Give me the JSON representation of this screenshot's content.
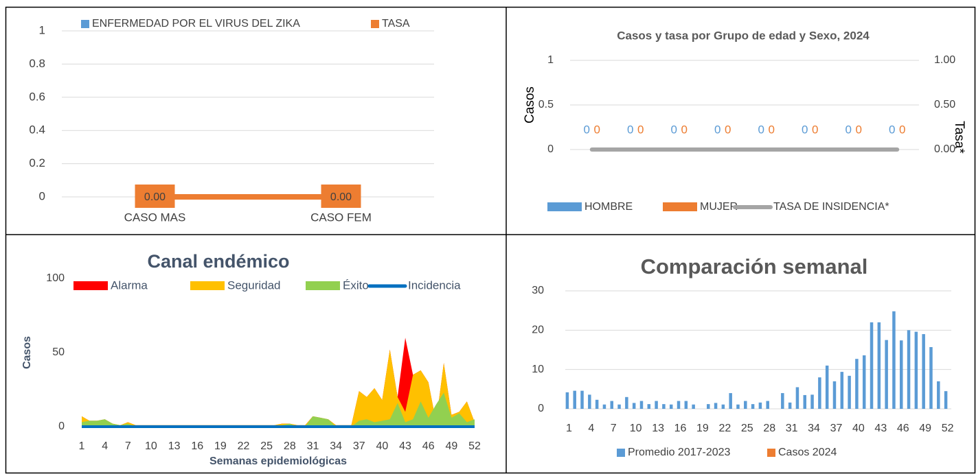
{
  "chart_data": [
    {
      "type": "bar",
      "categories": [
        "CASO MAS",
        "CASO FEM"
      ],
      "series": [
        {
          "name": "ENFERMEDAD POR EL VIRUS DEL ZIKA",
          "color": "#5b9bd5",
          "values": [
            0,
            0
          ]
        },
        {
          "name": "TASA",
          "type": "line",
          "color": "#ed7d31",
          "values": [
            0,
            0
          ],
          "value_labels": [
            "0.00",
            "0.00"
          ]
        }
      ],
      "ylim": [
        0,
        1
      ],
      "yticks": [
        0,
        0.2,
        0.4,
        0.6,
        0.8,
        1
      ],
      "grid": true
    },
    {
      "type": "bar",
      "title": "Casos y tasa por Grupo de edad y Sexo, 2024",
      "y_label": "Casos",
      "y2_label": "Tasa*",
      "categories": [
        null,
        null,
        null,
        null,
        null,
        null,
        null,
        null
      ],
      "series": [
        {
          "name": "HOMBRE",
          "color": "#5b9bd5",
          "values": [
            0,
            0,
            0,
            0,
            0,
            0,
            0,
            0
          ]
        },
        {
          "name": "MUJER",
          "color": "#ed7d31",
          "values": [
            0,
            0,
            0,
            0,
            0,
            0,
            0,
            0
          ]
        },
        {
          "name": "TASA DE INSIDENCIA*",
          "type": "line",
          "axis": "y2",
          "color": "#a5a5a5",
          "values": [
            0,
            0,
            0,
            0,
            0,
            0,
            0,
            0
          ]
        }
      ],
      "ylim": [
        0,
        1
      ],
      "yticks": [
        0,
        0.5,
        1
      ],
      "y2lim": [
        0,
        1
      ],
      "y2ticks": [
        {
          "value": 0,
          "label": "0.00"
        },
        {
          "value": 0.5,
          "label": "0.50"
        },
        {
          "value": 1,
          "label": "1.00"
        }
      ],
      "grid": true
    },
    {
      "type": "area",
      "title": "Canal endémico",
      "y_label": "Casos",
      "x_label": "Semanas epidemiológicas",
      "categories": [
        1,
        null,
        null,
        4,
        null,
        null,
        7,
        null,
        null,
        10,
        null,
        null,
        13,
        null,
        null,
        16,
        null,
        null,
        19,
        null,
        null,
        22,
        null,
        null,
        25,
        null,
        null,
        28,
        null,
        null,
        31,
        null,
        null,
        34,
        null,
        null,
        37,
        null,
        null,
        40,
        null,
        null,
        43,
        null,
        null,
        46,
        null,
        null,
        49,
        null,
        null,
        52
      ],
      "series": [
        {
          "name": "Alarma",
          "color": "#ff0000",
          "values": [
            7,
            4,
            4,
            5,
            2,
            1,
            3,
            1,
            1,
            1,
            1,
            1,
            1,
            1,
            1,
            1,
            1,
            1,
            1,
            1,
            1,
            1,
            1,
            1,
            1,
            1,
            2,
            2,
            1,
            1,
            7,
            6,
            5,
            1,
            1,
            1,
            24,
            20,
            26,
            18,
            52,
            20,
            60,
            35,
            38,
            30,
            3,
            43,
            8,
            10,
            17,
            3
          ]
        },
        {
          "name": "Seguridad",
          "color": "#ffc000",
          "values": [
            7,
            4,
            4,
            5,
            2,
            1,
            3,
            1,
            1,
            1,
            1,
            1,
            1,
            1,
            1,
            1,
            1,
            1,
            1,
            1,
            1,
            1,
            1,
            1,
            1,
            1,
            2,
            2,
            1,
            1,
            7,
            6,
            5,
            1,
            1,
            1,
            24,
            20,
            26,
            18,
            52,
            20,
            10,
            35,
            38,
            30,
            3,
            43,
            8,
            10,
            17,
            3
          ]
        },
        {
          "name": "Éxito",
          "color": "#92d050",
          "values": [
            3,
            4,
            4,
            5,
            2,
            1,
            2,
            0,
            0,
            0,
            0,
            0,
            0,
            0,
            0,
            0,
            0,
            0,
            0,
            0,
            0,
            0,
            0,
            0,
            0,
            0,
            1,
            2,
            0,
            0,
            7,
            6,
            5,
            0,
            0,
            0,
            4,
            5,
            3,
            4,
            5,
            16,
            3,
            5,
            17,
            6,
            15,
            23,
            6,
            9,
            3,
            5
          ]
        },
        {
          "name": "Incidencia",
          "type": "line",
          "color": "#0070c0",
          "values": [
            0,
            0,
            0,
            0,
            0,
            0,
            0,
            0,
            0,
            0,
            0,
            0,
            0,
            0,
            0,
            0,
            0,
            0,
            0,
            0,
            0,
            0,
            0,
            0,
            0,
            0,
            0,
            0,
            0,
            0,
            0,
            0,
            0,
            0,
            0,
            0,
            0,
            0,
            0,
            0,
            0,
            0,
            0,
            0,
            0,
            0,
            0,
            0,
            0,
            0,
            0,
            0
          ]
        }
      ],
      "ylim": [
        0,
        100
      ],
      "yticks": [
        0,
        50,
        100
      ],
      "grid": false
    },
    {
      "type": "bar",
      "title": "Comparación semanal",
      "categories": [
        1,
        null,
        null,
        4,
        null,
        null,
        7,
        null,
        null,
        10,
        null,
        null,
        13,
        null,
        null,
        16,
        null,
        null,
        19,
        null,
        null,
        22,
        null,
        null,
        25,
        null,
        null,
        28,
        null,
        null,
        31,
        null,
        null,
        34,
        null,
        null,
        37,
        null,
        null,
        40,
        null,
        null,
        43,
        null,
        null,
        46,
        null,
        null,
        49,
        null,
        null,
        52
      ],
      "series": [
        {
          "name": "Promedio 2017-2023",
          "color": "#5b9bd5",
          "values": [
            4.2,
            4.6,
            4.6,
            3.6,
            2.3,
            1.1,
            2,
            1.1,
            3,
            1.5,
            2,
            1.2,
            2,
            1.2,
            1.1,
            2,
            2,
            1.1,
            0,
            1.2,
            1.5,
            1.1,
            4,
            1.1,
            2,
            1.2,
            1.6,
            2,
            0,
            4,
            1.6,
            5.5,
            3.5,
            3.6,
            8,
            11,
            7,
            9.4,
            8.4,
            12.7,
            13.6,
            22,
            22,
            17.5,
            24.8,
            17.4,
            20,
            19.6,
            19,
            15.7,
            7,
            4.5
          ]
        },
        {
          "name": "Casos 2024",
          "color": "#ed7d31",
          "values": [
            0,
            0,
            0,
            0,
            0,
            0,
            0,
            0,
            0,
            0,
            0,
            0,
            0,
            0,
            0,
            0,
            0,
            0,
            0,
            0,
            0,
            0,
            0,
            0,
            0,
            0,
            0,
            0,
            0,
            0,
            0,
            0,
            0,
            0,
            0,
            0,
            0,
            0,
            0,
            0,
            0,
            0,
            0,
            0,
            0,
            0,
            0,
            0,
            0,
            0,
            0,
            0
          ]
        }
      ],
      "ylim": [
        0,
        30
      ],
      "yticks": [
        0,
        10,
        20,
        30
      ],
      "grid": true
    }
  ]
}
